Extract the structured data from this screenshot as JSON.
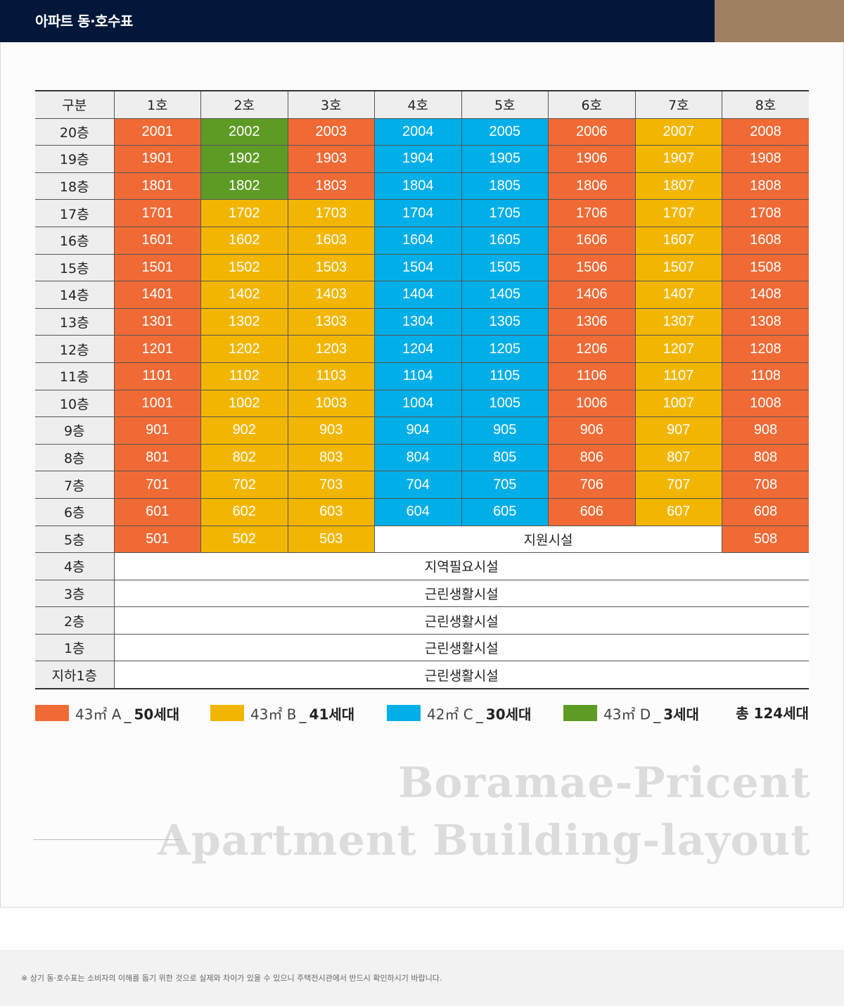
{
  "header": {
    "title": "아파트 동·호수표"
  },
  "colors": {
    "A": "#f06a35",
    "B": "#f2b600",
    "C": "#00aee8",
    "D": "#5e9b25",
    "header_bg": "#02173a",
    "header_accent": "#9f8063"
  },
  "table": {
    "corner": "구분",
    "columns": [
      "1호",
      "2호",
      "3호",
      "4호",
      "5호",
      "6호",
      "7호",
      "8호"
    ],
    "unit_rows": [
      {
        "floor": "20층",
        "cells": [
          {
            "v": "2001",
            "t": "A"
          },
          {
            "v": "2002",
            "t": "D"
          },
          {
            "v": "2003",
            "t": "A"
          },
          {
            "v": "2004",
            "t": "C"
          },
          {
            "v": "2005",
            "t": "C"
          },
          {
            "v": "2006",
            "t": "A"
          },
          {
            "v": "2007",
            "t": "B"
          },
          {
            "v": "2008",
            "t": "A"
          }
        ]
      },
      {
        "floor": "19층",
        "cells": [
          {
            "v": "1901",
            "t": "A"
          },
          {
            "v": "1902",
            "t": "D"
          },
          {
            "v": "1903",
            "t": "A"
          },
          {
            "v": "1904",
            "t": "C"
          },
          {
            "v": "1905",
            "t": "C"
          },
          {
            "v": "1906",
            "t": "A"
          },
          {
            "v": "1907",
            "t": "B"
          },
          {
            "v": "1908",
            "t": "A"
          }
        ]
      },
      {
        "floor": "18층",
        "cells": [
          {
            "v": "1801",
            "t": "A"
          },
          {
            "v": "1802",
            "t": "D"
          },
          {
            "v": "1803",
            "t": "A"
          },
          {
            "v": "1804",
            "t": "C"
          },
          {
            "v": "1805",
            "t": "C"
          },
          {
            "v": "1806",
            "t": "A"
          },
          {
            "v": "1807",
            "t": "B"
          },
          {
            "v": "1808",
            "t": "A"
          }
        ]
      },
      {
        "floor": "17층",
        "cells": [
          {
            "v": "1701",
            "t": "A"
          },
          {
            "v": "1702",
            "t": "B"
          },
          {
            "v": "1703",
            "t": "B"
          },
          {
            "v": "1704",
            "t": "C"
          },
          {
            "v": "1705",
            "t": "C"
          },
          {
            "v": "1706",
            "t": "A"
          },
          {
            "v": "1707",
            "t": "B"
          },
          {
            "v": "1708",
            "t": "A"
          }
        ]
      },
      {
        "floor": "16층",
        "cells": [
          {
            "v": "1601",
            "t": "A"
          },
          {
            "v": "1602",
            "t": "B"
          },
          {
            "v": "1603",
            "t": "B"
          },
          {
            "v": "1604",
            "t": "C"
          },
          {
            "v": "1605",
            "t": "C"
          },
          {
            "v": "1606",
            "t": "A"
          },
          {
            "v": "1607",
            "t": "B"
          },
          {
            "v": "1608",
            "t": "A"
          }
        ]
      },
      {
        "floor": "15층",
        "cells": [
          {
            "v": "1501",
            "t": "A"
          },
          {
            "v": "1502",
            "t": "B"
          },
          {
            "v": "1503",
            "t": "B"
          },
          {
            "v": "1504",
            "t": "C"
          },
          {
            "v": "1505",
            "t": "C"
          },
          {
            "v": "1506",
            "t": "A"
          },
          {
            "v": "1507",
            "t": "B"
          },
          {
            "v": "1508",
            "t": "A"
          }
        ]
      },
      {
        "floor": "14층",
        "cells": [
          {
            "v": "1401",
            "t": "A"
          },
          {
            "v": "1402",
            "t": "B"
          },
          {
            "v": "1403",
            "t": "B"
          },
          {
            "v": "1404",
            "t": "C"
          },
          {
            "v": "1405",
            "t": "C"
          },
          {
            "v": "1406",
            "t": "A"
          },
          {
            "v": "1407",
            "t": "B"
          },
          {
            "v": "1408",
            "t": "A"
          }
        ]
      },
      {
        "floor": "13층",
        "cells": [
          {
            "v": "1301",
            "t": "A"
          },
          {
            "v": "1302",
            "t": "B"
          },
          {
            "v": "1303",
            "t": "B"
          },
          {
            "v": "1304",
            "t": "C"
          },
          {
            "v": "1305",
            "t": "C"
          },
          {
            "v": "1306",
            "t": "A"
          },
          {
            "v": "1307",
            "t": "B"
          },
          {
            "v": "1308",
            "t": "A"
          }
        ]
      },
      {
        "floor": "12층",
        "cells": [
          {
            "v": "1201",
            "t": "A"
          },
          {
            "v": "1202",
            "t": "B"
          },
          {
            "v": "1203",
            "t": "B"
          },
          {
            "v": "1204",
            "t": "C"
          },
          {
            "v": "1205",
            "t": "C"
          },
          {
            "v": "1206",
            "t": "A"
          },
          {
            "v": "1207",
            "t": "B"
          },
          {
            "v": "1208",
            "t": "A"
          }
        ]
      },
      {
        "floor": "11층",
        "cells": [
          {
            "v": "1101",
            "t": "A"
          },
          {
            "v": "1102",
            "t": "B"
          },
          {
            "v": "1103",
            "t": "B"
          },
          {
            "v": "1104",
            "t": "C"
          },
          {
            "v": "1105",
            "t": "C"
          },
          {
            "v": "1106",
            "t": "A"
          },
          {
            "v": "1107",
            "t": "B"
          },
          {
            "v": "1108",
            "t": "A"
          }
        ]
      },
      {
        "floor": "10층",
        "cells": [
          {
            "v": "1001",
            "t": "A"
          },
          {
            "v": "1002",
            "t": "B"
          },
          {
            "v": "1003",
            "t": "B"
          },
          {
            "v": "1004",
            "t": "C"
          },
          {
            "v": "1005",
            "t": "C"
          },
          {
            "v": "1006",
            "t": "A"
          },
          {
            "v": "1007",
            "t": "B"
          },
          {
            "v": "1008",
            "t": "A"
          }
        ]
      },
      {
        "floor": "9층",
        "cells": [
          {
            "v": "901",
            "t": "A"
          },
          {
            "v": "902",
            "t": "B"
          },
          {
            "v": "903",
            "t": "B"
          },
          {
            "v": "904",
            "t": "C"
          },
          {
            "v": "905",
            "t": "C"
          },
          {
            "v": "906",
            "t": "A"
          },
          {
            "v": "907",
            "t": "B"
          },
          {
            "v": "908",
            "t": "A"
          }
        ]
      },
      {
        "floor": "8층",
        "cells": [
          {
            "v": "801",
            "t": "A"
          },
          {
            "v": "802",
            "t": "B"
          },
          {
            "v": "803",
            "t": "B"
          },
          {
            "v": "804",
            "t": "C"
          },
          {
            "v": "805",
            "t": "C"
          },
          {
            "v": "806",
            "t": "A"
          },
          {
            "v": "807",
            "t": "B"
          },
          {
            "v": "808",
            "t": "A"
          }
        ]
      },
      {
        "floor": "7층",
        "cells": [
          {
            "v": "701",
            "t": "A"
          },
          {
            "v": "702",
            "t": "B"
          },
          {
            "v": "703",
            "t": "B"
          },
          {
            "v": "704",
            "t": "C"
          },
          {
            "v": "705",
            "t": "C"
          },
          {
            "v": "706",
            "t": "A"
          },
          {
            "v": "707",
            "t": "B"
          },
          {
            "v": "708",
            "t": "A"
          }
        ]
      },
      {
        "floor": "6층",
        "cells": [
          {
            "v": "601",
            "t": "A"
          },
          {
            "v": "602",
            "t": "B"
          },
          {
            "v": "603",
            "t": "B"
          },
          {
            "v": "604",
            "t": "C"
          },
          {
            "v": "605",
            "t": "C"
          },
          {
            "v": "606",
            "t": "A"
          },
          {
            "v": "607",
            "t": "B"
          },
          {
            "v": "608",
            "t": "A"
          }
        ]
      }
    ],
    "row5": {
      "floor": "5층",
      "cells": [
        {
          "v": "501",
          "t": "A"
        },
        {
          "v": "502",
          "t": "B"
        },
        {
          "v": "503",
          "t": "B"
        }
      ],
      "facility": "지원시설",
      "last": {
        "v": "508",
        "t": "A"
      }
    },
    "facility_rows": [
      {
        "floor": "4층",
        "label": "지역필요시설"
      },
      {
        "floor": "3층",
        "label": "근린생활시설"
      },
      {
        "floor": "2층",
        "label": "근린생활시설"
      },
      {
        "floor": "1층",
        "label": "근린생활시설"
      },
      {
        "floor": "지하1층",
        "label": "근린생활시설"
      }
    ]
  },
  "legend": {
    "items": [
      {
        "type": "A",
        "label": "43㎡ A",
        "sep": "_",
        "count": "50세대"
      },
      {
        "type": "B",
        "label": "43㎡ B",
        "sep": "_",
        "count": "41세대"
      },
      {
        "type": "C",
        "label": "42㎡ C",
        "sep": "_",
        "count": "30세대"
      },
      {
        "type": "D",
        "label": "43㎡ D",
        "sep": "_",
        "count": "3세대"
      }
    ],
    "total": "총 124세대"
  },
  "watermark": {
    "line1": "Boramae-Pricent",
    "line2": "Apartment Building-layout"
  },
  "footer": {
    "note": "※ 상기 동·호수표는 소비자의 이해를 돕기 위한 것으로 실제와 차이가 있을 수 있으니 주택전시관에서 반드시 확인하시기 바랍니다."
  }
}
